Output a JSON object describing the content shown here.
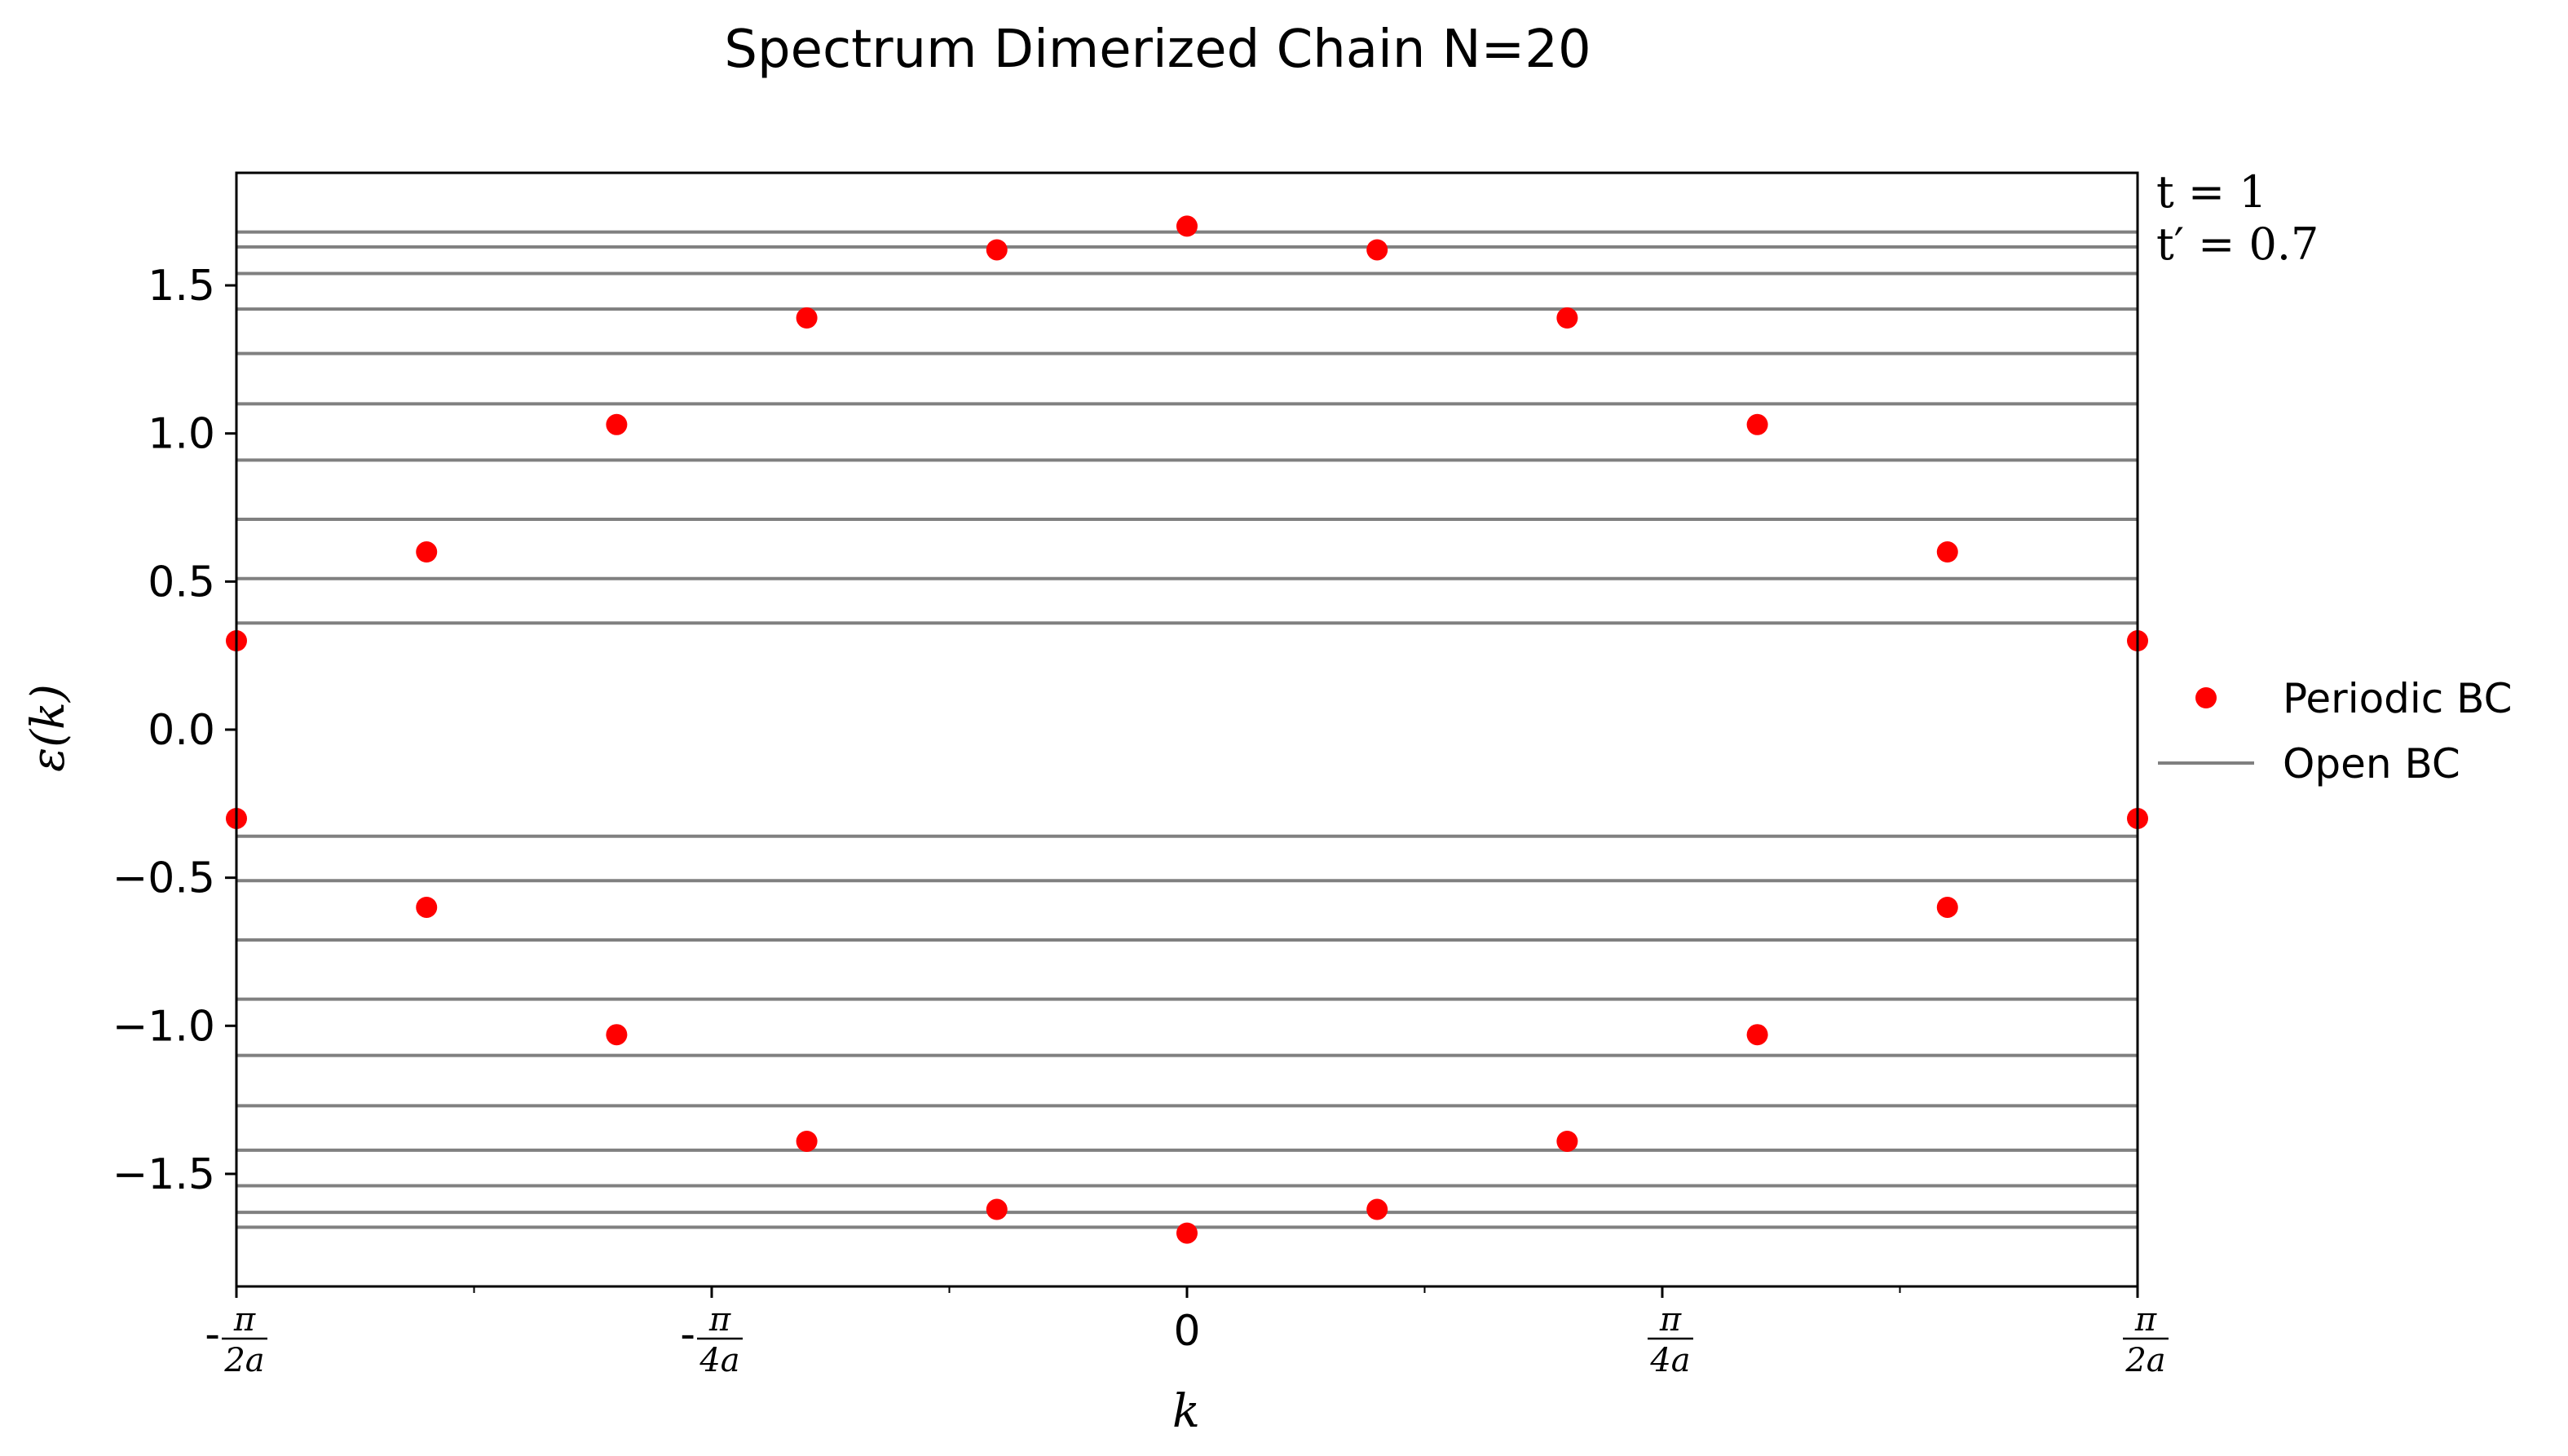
{
  "chart_data": {
    "type": "scatter",
    "title": "Spectrum Dimerized Chain N=20",
    "xlabel": "k",
    "ylabel": "ε(k)",
    "xlim": [
      -1.5707963,
      1.5707963
    ],
    "ylim": [
      -1.88,
      1.88
    ],
    "x_ticks": [
      {
        "value": -1.5707963,
        "sign": "-",
        "num": "π",
        "den": "2a"
      },
      {
        "value": -0.7853982,
        "sign": "-",
        "num": "π",
        "den": "4a"
      },
      {
        "value": 0,
        "label": "0"
      },
      {
        "value": 0.7853982,
        "sign": "",
        "num": "π",
        "den": "4a"
      },
      {
        "value": 1.5707963,
        "sign": "",
        "num": "π",
        "den": "2a"
      }
    ],
    "y_ticks": [
      {
        "value": 1.5,
        "label": "1.5"
      },
      {
        "value": 1.0,
        "label": "1.0"
      },
      {
        "value": 0.5,
        "label": "0.5"
      },
      {
        "value": 0.0,
        "label": "0.0"
      },
      {
        "value": -0.5,
        "label": "−0.5"
      },
      {
        "value": -1.0,
        "label": "−1.0"
      },
      {
        "value": -1.5,
        "label": "−1.5"
      }
    ],
    "annotations": [
      "t = 1",
      "t′ = 0.7"
    ],
    "legend": {
      "placement": "right",
      "entries": [
        "Periodic BC",
        "Open BC"
      ]
    },
    "series": [
      {
        "name": "Periodic BC",
        "kind": "scatter",
        "color": "#ff0000",
        "points": [
          [
            -1.5708,
            0.3
          ],
          [
            -1.5708,
            -0.3
          ],
          [
            -1.2566,
            0.6
          ],
          [
            -1.2566,
            -0.6
          ],
          [
            -0.9425,
            1.03
          ],
          [
            -0.9425,
            -1.03
          ],
          [
            -0.6283,
            1.39
          ],
          [
            -0.6283,
            -1.39
          ],
          [
            -0.3142,
            1.62
          ],
          [
            -0.3142,
            -1.62
          ],
          [
            0.0,
            1.7
          ],
          [
            0.0,
            -1.7
          ],
          [
            0.3142,
            1.62
          ],
          [
            0.3142,
            -1.62
          ],
          [
            0.6283,
            1.39
          ],
          [
            0.6283,
            -1.39
          ],
          [
            0.9425,
            1.03
          ],
          [
            0.9425,
            -1.03
          ],
          [
            1.2566,
            0.6
          ],
          [
            1.2566,
            -0.6
          ],
          [
            1.5708,
            0.3
          ],
          [
            1.5708,
            -0.3
          ]
        ]
      },
      {
        "name": "Open BC",
        "kind": "hlines",
        "color": "#808080",
        "levels": [
          1.68,
          1.63,
          1.54,
          1.42,
          1.27,
          1.1,
          0.91,
          0.71,
          0.51,
          0.36,
          -0.36,
          -0.51,
          -0.71,
          -0.91,
          -1.1,
          -1.27,
          -1.42,
          -1.54,
          -1.63,
          -1.68
        ]
      }
    ]
  }
}
